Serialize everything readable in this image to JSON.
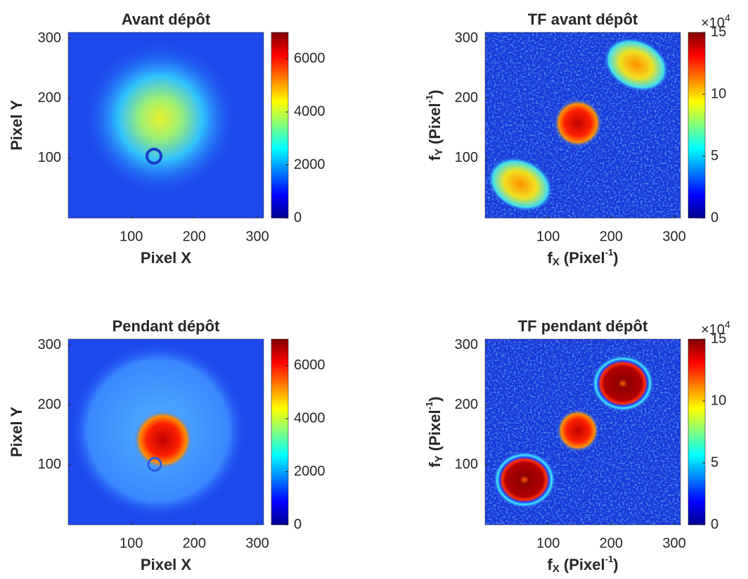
{
  "chart_data": [
    {
      "type": "heatmap",
      "title": "Avant dépôt",
      "xlabel": "Pixel X",
      "ylabel": "Pixel Y",
      "xlim": [
        0,
        310
      ],
      "ylim": [
        0,
        310
      ],
      "xticks": [
        100,
        200,
        300
      ],
      "yticks": [
        100,
        200,
        300
      ],
      "colorscale": "jet",
      "clim": [
        0,
        7000
      ],
      "cticks": [
        0,
        2000,
        4000,
        6000
      ]
    },
    {
      "type": "heatmap",
      "title": "TF avant dépôt",
      "xlabel": [
        "f",
        "X",
        " (Pixel",
        "-1",
        ")"
      ],
      "ylabel": [
        "f",
        "Y",
        " (Pixel",
        "-1",
        ")"
      ],
      "xlim": [
        0,
        310
      ],
      "ylim": [
        0,
        310
      ],
      "xticks": [
        100,
        200,
        300
      ],
      "yticks": [
        100,
        200,
        300
      ],
      "colorscale": "jet",
      "clim": [
        0,
        15
      ],
      "cticks": [
        0,
        5,
        10,
        15
      ],
      "cexponent": [
        "×10",
        "4"
      ]
    },
    {
      "type": "heatmap",
      "title": "Pendant dépôt",
      "xlabel": "Pixel X",
      "ylabel": "Pixel Y",
      "xlim": [
        0,
        310
      ],
      "ylim": [
        0,
        310
      ],
      "xticks": [
        100,
        200,
        300
      ],
      "yticks": [
        100,
        200,
        300
      ],
      "colorscale": "jet",
      "clim": [
        0,
        7000
      ],
      "cticks": [
        0,
        2000,
        4000,
        6000
      ]
    },
    {
      "type": "heatmap",
      "title": "TF pendant dépôt",
      "xlabel": [
        "f",
        "X",
        " (Pixel",
        "-1",
        ")"
      ],
      "ylabel": [
        "f",
        "Y",
        " (Pixel",
        "-1",
        ")"
      ],
      "xlim": [
        0,
        310
      ],
      "ylim": [
        0,
        310
      ],
      "xticks": [
        100,
        200,
        300
      ],
      "yticks": [
        100,
        200,
        300
      ],
      "colorscale": "jet",
      "clim": [
        0,
        15
      ],
      "cticks": [
        0,
        5,
        10,
        15
      ],
      "cexponent": [
        "×10",
        "4"
      ]
    }
  ]
}
